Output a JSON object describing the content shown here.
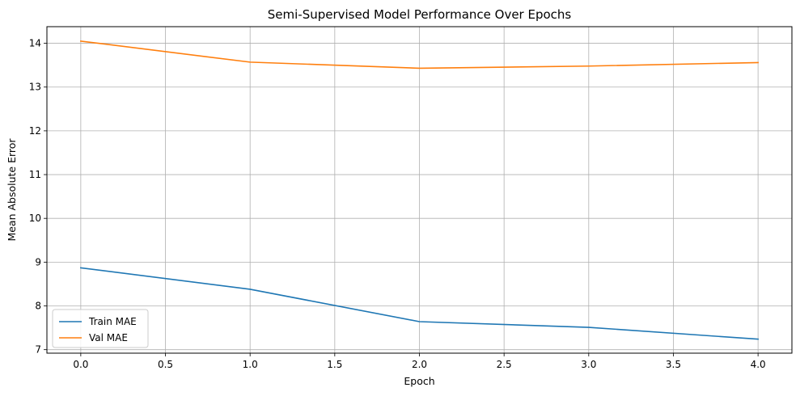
{
  "chart_data": {
    "type": "line",
    "title": "Semi-Supervised Model Performance Over Epochs",
    "xlabel": "Epoch",
    "ylabel": "Mean Absolute Error",
    "x": [
      0,
      1,
      2,
      3,
      4
    ],
    "xlim": [
      -0.2,
      4.2
    ],
    "ylim": [
      6.92,
      14.38
    ],
    "xticks": [
      0.0,
      0.5,
      1.0,
      1.5,
      2.0,
      2.5,
      3.0,
      3.5,
      4.0
    ],
    "xtick_labels": [
      "0.0",
      "0.5",
      "1.0",
      "1.5",
      "2.0",
      "2.5",
      "3.0",
      "3.5",
      "4.0"
    ],
    "yticks": [
      7,
      8,
      9,
      10,
      11,
      12,
      13,
      14
    ],
    "ytick_labels": [
      "7",
      "8",
      "9",
      "10",
      "11",
      "12",
      "13",
      "14"
    ],
    "grid": true,
    "legend_position": "lower-left",
    "series": [
      {
        "name": "Train MAE",
        "color": "#1f77b4",
        "values": [
          8.87,
          8.38,
          7.64,
          7.51,
          7.24
        ]
      },
      {
        "name": "Val MAE",
        "color": "#ff7f0e",
        "values": [
          14.05,
          13.57,
          13.43,
          13.48,
          13.56
        ]
      }
    ]
  }
}
